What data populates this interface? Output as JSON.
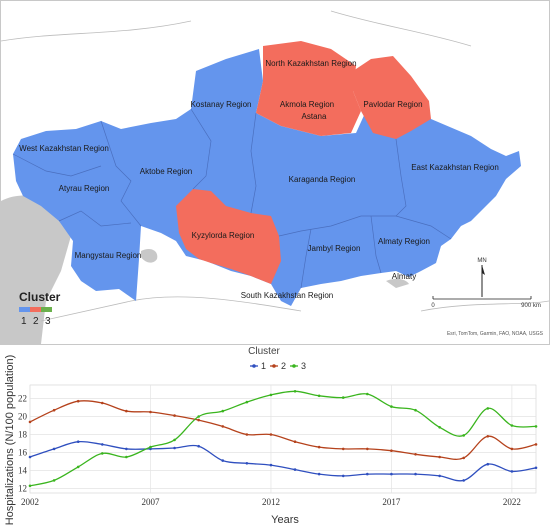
{
  "map": {
    "regions": [
      {
        "label": "North Kazakhstan Region",
        "cluster": 2
      },
      {
        "label": "Akmola Region",
        "cluster": 2
      },
      {
        "label": "Astana",
        "cluster": 2
      },
      {
        "label": "Pavlodar Region",
        "cluster": 2
      },
      {
        "label": "Kostanay Region",
        "cluster": 1
      },
      {
        "label": "West Kazakhstan Region",
        "cluster": 1
      },
      {
        "label": "Aktobe Region",
        "cluster": 1
      },
      {
        "label": "Karaganda Region",
        "cluster": 1
      },
      {
        "label": "East Kazakhstan Region",
        "cluster": 1
      },
      {
        "label": "Atyrau Region",
        "cluster": 1
      },
      {
        "label": "Kyzylorda Region",
        "cluster": 2
      },
      {
        "label": "Mangystau Region",
        "cluster": 1
      },
      {
        "label": "Jambyl Region",
        "cluster": 1
      },
      {
        "label": "Almaty Region",
        "cluster": 1
      },
      {
        "label": "Almaty",
        "cluster": 1
      },
      {
        "label": "South Kazakhstan Region",
        "cluster": 1
      }
    ],
    "legend": {
      "title": "Cluster",
      "items": [
        "1",
        "2",
        "3"
      ]
    },
    "north_arrow": "MN",
    "scale": {
      "start": "0",
      "end": "900 km"
    },
    "attribution": "Esri, TomTom, Garmin, FAO, NOAA, USGS"
  },
  "colors": {
    "cluster1": "#6495ed",
    "cluster2": "#f36d5d",
    "cluster3": "#6ab04c",
    "land": "#ffffff",
    "water": "#c8c8c8"
  },
  "chart_data": {
    "type": "line",
    "legend_title": "Cluster",
    "xlabel": "Years",
    "ylabel": "Hospitalizations (N/100 population)",
    "xlim": [
      2002,
      2023
    ],
    "ylim": [
      11.5,
      23.5
    ],
    "xticks": [
      2002,
      2007,
      2012,
      2017,
      2022
    ],
    "yticks": [
      12,
      14,
      16,
      18,
      20,
      22
    ],
    "x": [
      2002,
      2003,
      2004,
      2005,
      2006,
      2007,
      2008,
      2009,
      2010,
      2011,
      2012,
      2013,
      2014,
      2015,
      2016,
      2017,
      2018,
      2019,
      2020,
      2021,
      2022,
      2023
    ],
    "series": [
      {
        "name": "1",
        "color": "#2f4fbf",
        "values": [
          15.5,
          16.4,
          17.2,
          16.9,
          16.4,
          16.4,
          16.5,
          16.7,
          15.1,
          14.8,
          14.6,
          14.1,
          13.6,
          13.4,
          13.6,
          13.6,
          13.6,
          13.4,
          12.9,
          14.7,
          13.9,
          14.3
        ]
      },
      {
        "name": "2",
        "color": "#b5421c",
        "values": [
          19.4,
          20.7,
          21.7,
          21.5,
          20.6,
          20.5,
          20.1,
          19.6,
          18.9,
          18.0,
          18.0,
          17.2,
          16.6,
          16.4,
          16.4,
          16.2,
          15.8,
          15.5,
          15.4,
          17.8,
          16.4,
          16.9
        ]
      },
      {
        "name": "3",
        "color": "#3ab51e",
        "values": [
          12.3,
          12.9,
          14.4,
          15.9,
          15.5,
          16.6,
          17.4,
          20.0,
          20.6,
          21.6,
          22.4,
          22.8,
          22.3,
          22.1,
          22.5,
          21.1,
          20.7,
          18.8,
          17.9,
          20.9,
          19.0,
          18.9
        ]
      }
    ]
  }
}
